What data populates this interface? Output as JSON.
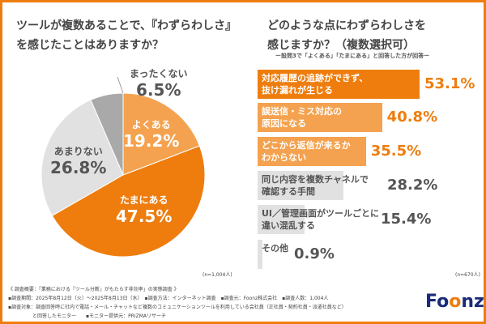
{
  "left": {
    "title_line1": "ツールが複数あることで、『わずらわしさ』",
    "title_line2": "を感じたことはありますか？",
    "n_label": "(n=1,004人)"
  },
  "right": {
    "title_line1": "どのような点にわずらわしさを",
    "title_line2": "感じますか？（複数選択可）",
    "subtitle": "ー設問3で「よくある」「たまにある」と回答した方が回答ー",
    "n_label": "(n=670人)"
  },
  "chart_data": [
    {
      "type": "pie",
      "categories": [
        "よくある",
        "たまにある",
        "あまりない",
        "まったくない"
      ],
      "values": [
        19.2,
        47.5,
        26.8,
        6.5
      ],
      "labels": [
        "19.2%",
        "47.5%",
        "26.8%",
        "6.5%"
      ],
      "colors": [
        "#f4a24f",
        "#ee7d0e",
        "#e1e1e1",
        "#a9a9a9"
      ]
    },
    {
      "type": "bar",
      "orientation": "horizontal",
      "categories": [
        [
          "対応履歴の追跡ができず、",
          "抜け漏れが生じる"
        ],
        [
          "誤送信・ミス対応の",
          "原因になる"
        ],
        [
          "どこから返信が来るか",
          "わからない"
        ],
        [
          "同じ内容を複数チャネルで",
          "確認する手間"
        ],
        [
          "UI／管理画面がツールごとに",
          "違い混乱する"
        ],
        [
          "その他",
          ""
        ]
      ],
      "values": [
        53.1,
        40.8,
        35.5,
        28.2,
        15.4,
        0.9
      ],
      "labels": [
        "53.1%",
        "40.8%",
        "35.5%",
        "28.2%",
        "15.4%",
        "0.9%"
      ],
      "colors": [
        "#ee7d0e",
        "#f4a24f",
        "#f4a24f",
        "#e1e1e1",
        "#e1e1e1",
        "#e1e1e1"
      ]
    }
  ],
  "footer": {
    "line1": "《 調査概要：「業務における『ツール分断』がもたらす非効率」の実態調査 》",
    "line2": "▪調査期間：2025年8月12日（火）～2025年8月13日（水）　▪調査方法：インターネット調査　▪調査元：Foonz株式会社　▪調査人数：1,004人",
    "line3": "▪調査対象：調査回答時に社内で電話・メール・チャットなど複数のコミュニケーションツールを利用している会社員（正社員・契約社員・派遣社員など）",
    "line4": "　　　　　と回答したモニター　　▪モニター提供元：PRIZMAリサーチ"
  },
  "logo": {
    "text_a": "Fo",
    "text_b": "o",
    "text_c": "nz"
  }
}
